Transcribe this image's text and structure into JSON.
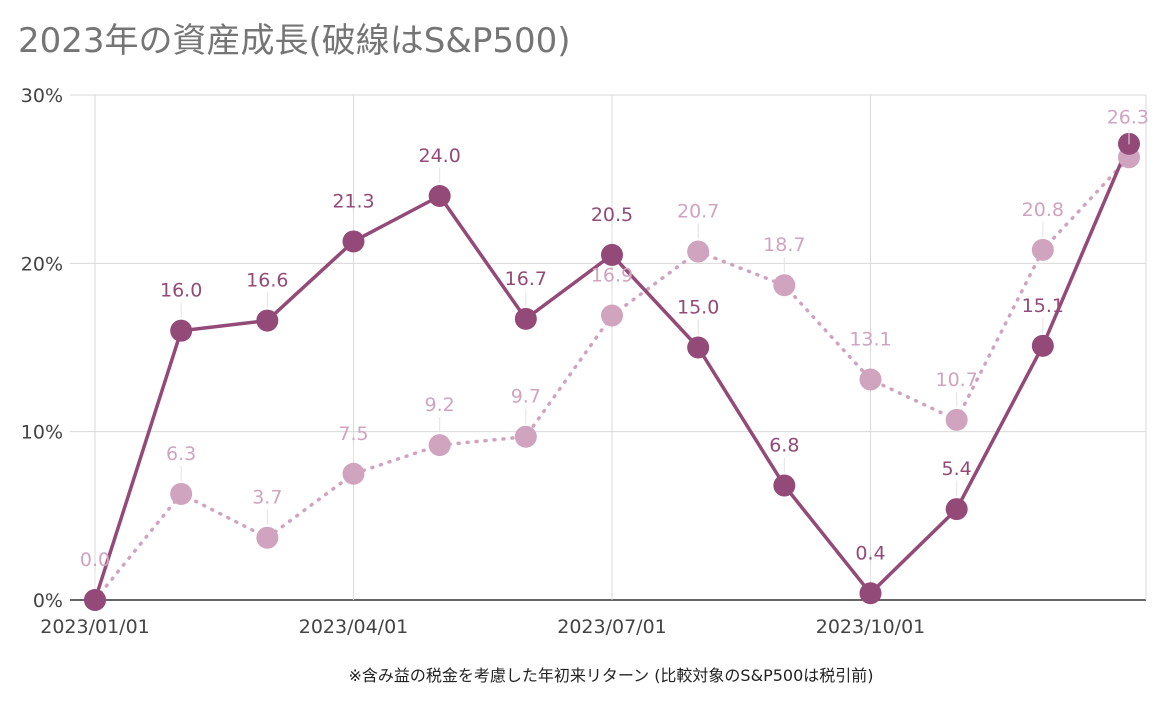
{
  "chart_data": {
    "type": "line",
    "title": "2023年の資産成長(破線はS&P500)",
    "footnote": "※含み益の税金を考慮した年初来リターン (比較対象のS&P500は税引前)",
    "xlabel": "",
    "ylabel": "",
    "x": [
      "2023/01/01",
      "2023/02/01",
      "2023/03/01",
      "2023/04/01",
      "2023/05/01",
      "2023/06/01",
      "2023/07/01",
      "2023/08/01",
      "2023/09/01",
      "2023/10/01",
      "2023/11/01",
      "2023/12/01",
      "2024/01/01"
    ],
    "x_tick_labels": [
      "2023/01/01",
      "2023/04/01",
      "2023/07/01",
      "2023/10/01"
    ],
    "y_ticks": [
      "0%",
      "10%",
      "20%",
      "30%"
    ],
    "ylim": [
      0,
      30
    ],
    "grid": true,
    "legend": "none",
    "series": [
      {
        "style": "solid",
        "color": "#934a78",
        "values": [
          0.0,
          16.0,
          16.6,
          21.3,
          24.0,
          16.7,
          20.5,
          15.0,
          6.8,
          0.4,
          5.4,
          15.1,
          27.1
        ],
        "labels": [
          "",
          "16.0",
          "16.6",
          "21.3",
          "24.0",
          "16.7",
          "20.5",
          "15.0",
          "6.8",
          "0.4",
          "5.4",
          "15.1",
          ""
        ]
      },
      {
        "style": "dotted",
        "color": "#d0a4bf",
        "values": [
          0.0,
          6.3,
          3.7,
          7.5,
          9.2,
          9.7,
          16.9,
          20.7,
          18.7,
          13.1,
          10.7,
          20.8,
          26.3
        ],
        "labels": [
          "0.0",
          "6.3",
          "3.7",
          "7.5",
          "9.2",
          "9.7",
          "16.9",
          "20.7",
          "18.7",
          "13.1",
          "10.7",
          "20.8",
          "26.3"
        ]
      }
    ]
  }
}
